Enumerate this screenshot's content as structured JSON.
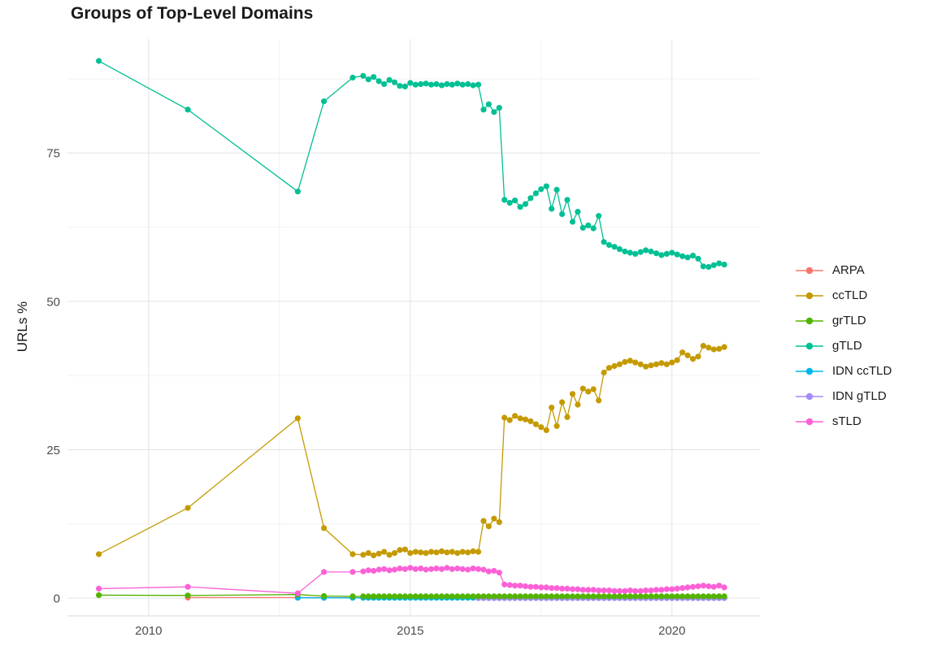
{
  "chart_data": {
    "type": "line",
    "title": "Groups of Top-Level Domains",
    "xlabel": "",
    "ylabel": "URLs %",
    "x_ticks": [
      2010,
      2015,
      2020
    ],
    "x_minor_ticks": [
      2012.5,
      2017.5
    ],
    "y_ticks": [
      0,
      25,
      50,
      75
    ],
    "y_minor_ticks": [
      12.5,
      37.5,
      62.5,
      87.5
    ],
    "xlim": [
      2008.45,
      2021.68
    ],
    "ylim": [
      -3,
      94.2
    ],
    "grid": true,
    "legend_position": "right",
    "marker": "point",
    "draw_order": [
      "ARPA",
      "IDN ccTLD",
      "IDN gTLD",
      "grTLD",
      "ccTLD",
      "gTLD",
      "sTLD"
    ],
    "series": [
      {
        "name": "ARPA",
        "color": "#F8766D",
        "points": [
          [
            2010.75,
            0.1
          ],
          [
            2012.85,
            0.1
          ],
          [
            2013.35,
            0.1
          ],
          [
            2013.9,
            0.08
          ]
        ],
        "dense": {
          "x_start": 2014.1,
          "x_step": 0.1,
          "count": 70,
          "const": 0.08
        }
      },
      {
        "name": "ccTLD",
        "color": "#C49A00",
        "points": [
          [
            2009.05,
            7.4
          ],
          [
            2010.75,
            15.2
          ],
          [
            2012.85,
            30.3
          ],
          [
            2013.35,
            11.8
          ],
          [
            2013.9,
            7.4
          ]
        ],
        "dense": {
          "x_start": 2014.1,
          "x_step": 0.1,
          "values": [
            7.3,
            7.6,
            7.2,
            7.5,
            7.8,
            7.3,
            7.6,
            8.1,
            8.2,
            7.6,
            7.8,
            7.7,
            7.6,
            7.8,
            7.7,
            7.9,
            7.7,
            7.8,
            7.6,
            7.8,
            7.7,
            7.9,
            7.8,
            13.0,
            12.1,
            13.4,
            12.8,
            30.4,
            30.0,
            30.7,
            30.3,
            30.1,
            29.8,
            29.3,
            28.8,
            28.3,
            32.1,
            29.0,
            33.0,
            30.5,
            34.4,
            32.6,
            35.3,
            34.8,
            35.2,
            33.3,
            38.0,
            38.8,
            39.1,
            39.4,
            39.8,
            40.0,
            39.7,
            39.4,
            39.0,
            39.2,
            39.4,
            39.6,
            39.4,
            39.7,
            40.1,
            41.4,
            40.9,
            40.3,
            40.7,
            42.5,
            42.2,
            41.9,
            42.0,
            42.3
          ]
        }
      },
      {
        "name": "grTLD",
        "color": "#53B400",
        "points": [
          [
            2009.05,
            0.5
          ],
          [
            2010.75,
            0.45
          ],
          [
            2012.85,
            0.6
          ],
          [
            2013.35,
            0.35
          ],
          [
            2013.9,
            0.3
          ]
        ],
        "dense": {
          "x_start": 2014.1,
          "x_step": 0.1,
          "count": 70,
          "const": 0.3
        }
      },
      {
        "name": "gTLD",
        "color": "#00C094",
        "points": [
          [
            2009.05,
            90.5
          ],
          [
            2010.75,
            82.3
          ],
          [
            2012.85,
            68.5
          ],
          [
            2013.35,
            83.7
          ],
          [
            2013.9,
            87.7
          ]
        ],
        "dense": {
          "x_start": 2014.1,
          "x_step": 0.1,
          "values": [
            88.0,
            87.4,
            87.8,
            87.1,
            86.6,
            87.3,
            86.9,
            86.3,
            86.2,
            86.8,
            86.5,
            86.6,
            86.7,
            86.5,
            86.6,
            86.4,
            86.6,
            86.5,
            86.7,
            86.5,
            86.6,
            86.4,
            86.5,
            82.3,
            83.2,
            81.9,
            82.6,
            67.1,
            66.6,
            67.0,
            65.9,
            66.4,
            67.4,
            68.2,
            68.9,
            69.4,
            65.6,
            68.8,
            64.7,
            67.1,
            63.4,
            65.1,
            62.4,
            62.8,
            62.3,
            64.4,
            60.0,
            59.5,
            59.2,
            58.8,
            58.4,
            58.2,
            58.0,
            58.3,
            58.6,
            58.4,
            58.1,
            57.8,
            58.0,
            58.2,
            57.9,
            57.6,
            57.4,
            57.7,
            57.2,
            55.9,
            55.8,
            56.1,
            56.4,
            56.2
          ]
        }
      },
      {
        "name": "IDN ccTLD",
        "color": "#00B6EB",
        "points": [
          [
            2012.85,
            0.05
          ],
          [
            2013.35,
            0.05
          ],
          [
            2013.9,
            0.05
          ]
        ],
        "dense": {
          "x_start": 2014.1,
          "x_step": 0.1,
          "count": 70,
          "const": 0.05
        }
      },
      {
        "name": "IDN gTLD",
        "color": "#A58AFF",
        "points": [],
        "dense": {
          "x_start": 2016.3,
          "x_step": 0.1,
          "count": 48,
          "const": 0.0
        }
      },
      {
        "name": "sTLD",
        "color": "#FB61D7",
        "points": [
          [
            2009.05,
            1.6
          ],
          [
            2010.75,
            1.9
          ],
          [
            2012.85,
            0.8
          ],
          [
            2013.35,
            4.4
          ],
          [
            2013.9,
            4.4
          ]
        ],
        "dense": {
          "x_start": 2014.1,
          "x_step": 0.1,
          "values": [
            4.5,
            4.7,
            4.6,
            4.8,
            4.9,
            4.7,
            4.8,
            5.0,
            4.9,
            5.1,
            4.9,
            5.0,
            4.8,
            4.9,
            5.0,
            4.9,
            5.1,
            4.9,
            5.0,
            4.9,
            4.8,
            5.0,
            4.9,
            4.8,
            4.5,
            4.6,
            4.3,
            2.3,
            2.2,
            2.1,
            2.1,
            2.0,
            1.9,
            1.9,
            1.8,
            1.8,
            1.7,
            1.7,
            1.6,
            1.6,
            1.5,
            1.5,
            1.4,
            1.4,
            1.4,
            1.3,
            1.3,
            1.3,
            1.2,
            1.2,
            1.2,
            1.3,
            1.2,
            1.2,
            1.3,
            1.3,
            1.4,
            1.4,
            1.5,
            1.5,
            1.6,
            1.7,
            1.8,
            1.9,
            2.0,
            2.1,
            2.0,
            1.9,
            2.1,
            1.8
          ]
        }
      }
    ],
    "colors": {
      "grid_major": "#E4E4E4",
      "grid_minor": "#F2F2F2",
      "axis_line": "#E0E0E0",
      "tick_label": "#4D4D4D",
      "title": "#1A1A1A"
    }
  }
}
